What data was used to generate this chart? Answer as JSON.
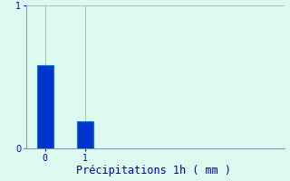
{
  "categories": [
    0,
    1
  ],
  "values": [
    0.58,
    0.19
  ],
  "bar_color": "#0033CC",
  "bar_edge_color": "#0077DD",
  "background_color": "#DDFAF0",
  "xlabel": "Précipitations 1h ( mm )",
  "xlabel_color": "#0000BB",
  "xlabel_fontsize": 8.5,
  "tick_color": "#0000BB",
  "axis_color": "#7799AA",
  "ylim": [
    0,
    1.0
  ],
  "yticks": [
    0,
    1
  ],
  "xticks": [
    0,
    1
  ],
  "grid_color": "#99BBAA",
  "bar_width": 0.4,
  "xlim_left": -0.55,
  "xlim_right": 6.0
}
